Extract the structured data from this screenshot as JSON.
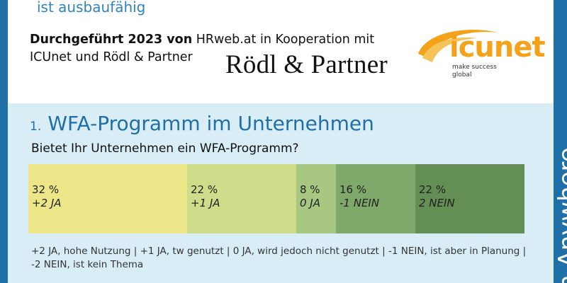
{
  "header": {
    "subtitle_top": "ist ausbaufähig",
    "credit_lead": "Durchgeführt 2023 von",
    "credit_rest": "HRweb.at in Kooperation mit ICUnet und Rödl & Partner",
    "partner_wordmark": "Rödl & Partner",
    "logo_word": "icunet",
    "logo_tagline_1": "make success",
    "logo_tagline_2": "global"
  },
  "section": {
    "number": "1.",
    "title": "WFA-Programm im Unternehmen",
    "question": "Bietet Ihr Unternehmen ein WFA-Programm?"
  },
  "legend_text": "+2 JA, hohe Nutzung  |  +1 JA, tw genutzt  |  0 JA, wird jedoch nicht genutzt  |  -1 NEIN, ist aber in Planung  |  -2 NEIN, ist kein Thema",
  "side_word": "n Anywhere",
  "colors": {
    "frame": "#1f6fa8",
    "panel": "#d9edf7",
    "seg_plus2": "#ece689",
    "seg_plus1": "#cfdc8a",
    "seg_zero": "#a8c881",
    "seg_minus1": "#7ea96b",
    "seg_minus2": "#638f55"
  },
  "chart_data": {
    "type": "bar",
    "orientation": "horizontal",
    "stacked": true,
    "categories": [
      "+2 JA",
      "+1 JA",
      "0 JA",
      "-1 NEIN",
      "2 NEIN"
    ],
    "values": [
      32,
      22,
      8,
      16,
      22
    ],
    "value_labels": [
      "32 %",
      "22 %",
      "8 %",
      "16 %",
      "22 %"
    ],
    "unit": "%"
  }
}
